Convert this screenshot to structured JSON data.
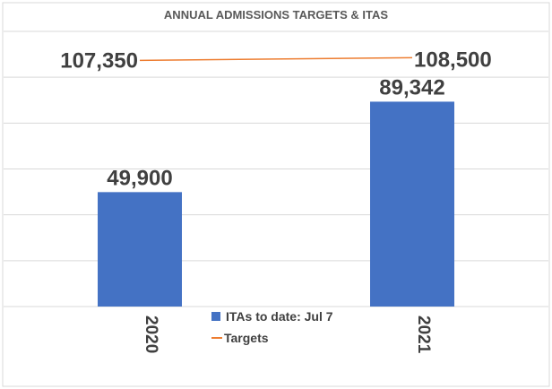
{
  "chart_data": {
    "type": "bar",
    "title": "ANNUAL ADMISSIONS TARGETS & ITAS",
    "categories": [
      "2020",
      "2021"
    ],
    "series": [
      {
        "name": "ITAs to date: Jul 7",
        "kind": "bar",
        "values": [
          49900,
          89342
        ],
        "labels": [
          "49,900",
          "89,342"
        ],
        "color": "#4472C4"
      },
      {
        "name": "Targets",
        "kind": "line",
        "values": [
          107350,
          108500
        ],
        "labels": [
          "107,350",
          "108,500"
        ],
        "color": "#ED7D31"
      }
    ],
    "ylim": [
      0,
      120000
    ],
    "y_gridlines": true,
    "legend": "bottom-center",
    "xlabel": "",
    "ylabel": ""
  }
}
